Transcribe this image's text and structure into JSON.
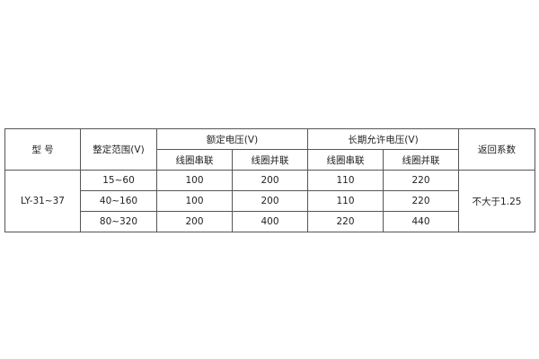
{
  "headers": {
    "model": "型 号",
    "range": "整定范围(V)",
    "rated_voltage": "额定电压(V)",
    "long_term_voltage": "长期允许电压(V)",
    "return_coef": "返回系数",
    "series": "线圈串联",
    "parallel": "线圈并联"
  },
  "model": "LY-31~37",
  "return_coef_value": "不大于1.25",
  "rows": [
    {
      "range": "15~60",
      "rated_series": "100",
      "rated_parallel": "200",
      "long_series": "110",
      "long_parallel": "220"
    },
    {
      "range": "40~160",
      "rated_series": "100",
      "rated_parallel": "200",
      "long_series": "110",
      "long_parallel": "220"
    },
    {
      "range": "80~320",
      "rated_series": "200",
      "rated_parallel": "400",
      "long_series": "220",
      "long_parallel": "440"
    }
  ]
}
